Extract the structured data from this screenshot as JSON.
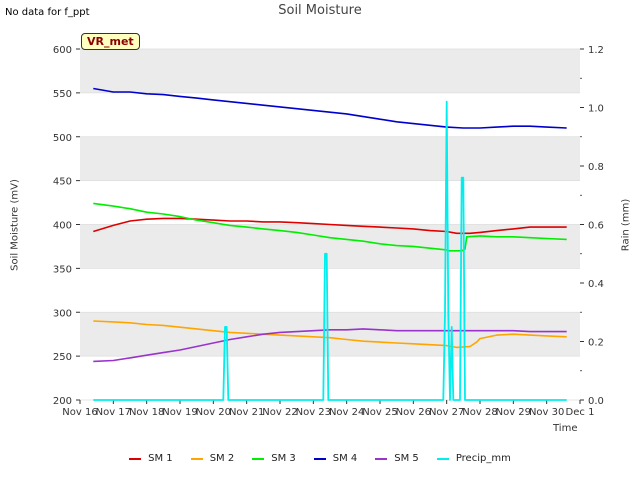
{
  "header": {
    "nodata_text": "No data for f_ppt",
    "title": "Soil Moisture",
    "badge": "VR_met"
  },
  "chart_data": {
    "type": "line",
    "title": "Soil Moisture",
    "xlabel": "Time",
    "ylabel": "Soil Moisture (mV)",
    "y2label": "Rain (mm)",
    "xlim": [
      0,
      15
    ],
    "ylim": [
      200,
      600
    ],
    "y2lim": [
      0,
      1.2
    ],
    "x_ticks": [
      0,
      1,
      2,
      3,
      4,
      5,
      6,
      7,
      8,
      9,
      10,
      11,
      12,
      13,
      14,
      15
    ],
    "x_tick_labels": [
      "Nov 16",
      "Nov 17",
      "Nov 18",
      "Nov 19",
      "Nov 20",
      "Nov 21",
      "Nov 22",
      "Nov 23",
      "Nov 24",
      "Nov 25",
      "Nov 26",
      "Nov 27",
      "Nov 28",
      "Nov 29",
      "Nov 30",
      "Dec 1"
    ],
    "y_ticks": [
      200,
      250,
      300,
      350,
      400,
      450,
      500,
      550,
      600
    ],
    "y2_ticks": [
      0.0,
      0.2,
      0.4,
      0.6,
      0.8,
      1.0,
      1.2
    ],
    "y2_tick_labels": [
      "0.0",
      "0.2",
      "0.4",
      "0.6",
      "0.8",
      "1.0",
      "1.2"
    ],
    "colors": {
      "band": "#ebebeb",
      "grid": "#ffffff"
    },
    "series": [
      {
        "name": "SM 1",
        "axis": "left",
        "color": "#dd0000",
        "x": [
          0.4,
          1,
          1.5,
          2,
          2.5,
          3,
          3.5,
          4,
          4.5,
          5,
          5.5,
          6,
          6.5,
          7,
          7.5,
          8,
          8.5,
          9,
          9.5,
          10,
          10.5,
          11,
          11.3,
          11.7,
          12,
          12.5,
          13,
          13.5,
          14,
          14.6
        ],
        "y": [
          392,
          399,
          404,
          406,
          407,
          407,
          406,
          405,
          404,
          404,
          403,
          403,
          402,
          401,
          400,
          399,
          398,
          397,
          396,
          395,
          393,
          392,
          390,
          390,
          391,
          393,
          395,
          397,
          397,
          397
        ]
      },
      {
        "name": "SM 2",
        "axis": "left",
        "color": "#ffa500",
        "x": [
          0.4,
          1,
          1.5,
          2,
          2.5,
          3,
          3.5,
          4,
          4.5,
          5,
          5.5,
          6,
          6.5,
          7,
          7.5,
          8,
          8.5,
          9,
          9.5,
          10,
          10.5,
          11,
          11.3,
          11.7,
          11.9,
          12,
          12.5,
          13,
          13.5,
          14,
          14.6
        ],
        "y": [
          290,
          289,
          288,
          286,
          285,
          283,
          281,
          279,
          277,
          276,
          275,
          274,
          273,
          272,
          271,
          269,
          267,
          266,
          265,
          264,
          263,
          262,
          260,
          261,
          266,
          270,
          274,
          275,
          274,
          273,
          272
        ]
      },
      {
        "name": "SM 3",
        "axis": "left",
        "color": "#00ee00",
        "x": [
          0.4,
          1,
          1.5,
          2,
          2.5,
          3,
          3.5,
          4,
          4.5,
          5,
          5.5,
          6,
          6.5,
          7,
          7.5,
          8,
          8.5,
          9,
          9.5,
          10,
          10.5,
          11,
          11.05,
          11.45,
          11.55,
          11.6,
          12,
          12.5,
          13,
          13.5,
          14,
          14.6
        ],
        "y": [
          424,
          421,
          418,
          414,
          412,
          409,
          405,
          402,
          399,
          397,
          395,
          393,
          391,
          388,
          385,
          383,
          381,
          378,
          376,
          375,
          373,
          371,
          370,
          370,
          372,
          386,
          387,
          386,
          386,
          385,
          384,
          383
        ]
      },
      {
        "name": "SM 4",
        "axis": "left",
        "color": "#0000cc",
        "x": [
          0.4,
          1,
          1.5,
          2,
          2.5,
          3,
          3.5,
          4,
          4.5,
          5,
          5.5,
          6,
          6.5,
          7,
          7.5,
          8,
          8.5,
          9,
          9.5,
          10,
          10.5,
          11,
          11.5,
          12,
          12.5,
          13,
          13.5,
          14,
          14.6
        ],
        "y": [
          555,
          551,
          551,
          549,
          548,
          546,
          544,
          542,
          540,
          538,
          536,
          534,
          532,
          530,
          528,
          526,
          523,
          520,
          517,
          515,
          513,
          511,
          510,
          510,
          511,
          512,
          512,
          511,
          510
        ]
      },
      {
        "name": "SM 5",
        "axis": "left",
        "color": "#9933cc",
        "x": [
          0.4,
          1,
          1.5,
          2,
          2.5,
          3,
          3.5,
          4,
          4.5,
          5,
          5.5,
          6,
          6.5,
          7,
          7.5,
          8,
          8.5,
          9,
          9.5,
          10,
          10.5,
          11,
          11.5,
          12,
          12.5,
          13,
          13.5,
          14,
          14.6
        ],
        "y": [
          244,
          245,
          248,
          251,
          254,
          257,
          261,
          265,
          269,
          272,
          275,
          277,
          278,
          279,
          280,
          280,
          281,
          280,
          279,
          279,
          279,
          279,
          279,
          279,
          279,
          279,
          278,
          278,
          278
        ]
      },
      {
        "name": "Precip_mm",
        "axis": "right",
        "color": "#00eeee",
        "x": [
          0.4,
          4.3,
          4.35,
          4.4,
          4.45,
          4.5,
          7.3,
          7.35,
          7.4,
          7.45,
          7.5,
          10.9,
          10.95,
          11.0,
          11.05,
          11.1,
          11.15,
          11.2,
          11.25,
          11.3,
          11.35,
          11.4,
          11.45,
          11.5,
          11.55,
          14.6
        ],
        "y": [
          0,
          0,
          0.25,
          0.25,
          0,
          0,
          0,
          0.5,
          0.5,
          0,
          0,
          0,
          0.3,
          1.02,
          0.3,
          0,
          0.25,
          0,
          0,
          0,
          0,
          0,
          0.76,
          0.76,
          0,
          0
        ]
      }
    ]
  }
}
